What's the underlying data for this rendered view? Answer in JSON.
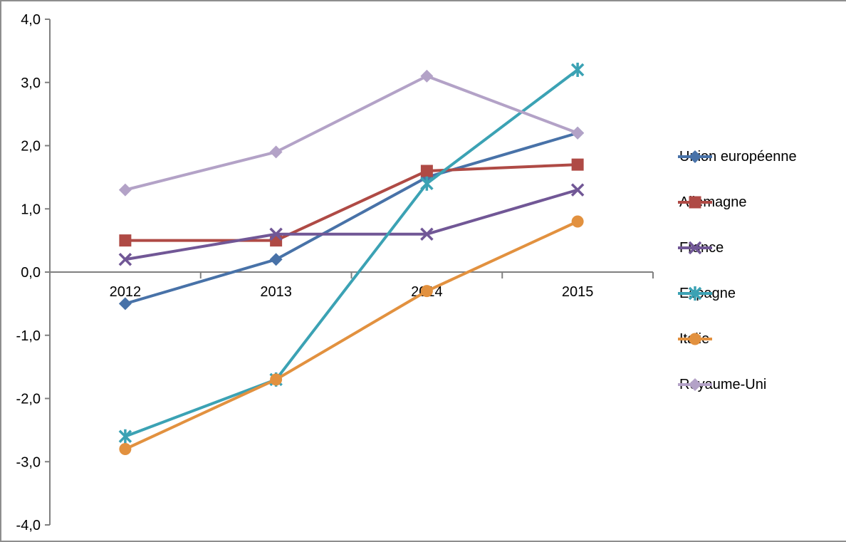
{
  "window": {
    "background": "#ffffff",
    "border_color": "#8e8e8e"
  },
  "chart_data": {
    "type": "line",
    "title": "",
    "xlabel": "",
    "ylabel": "",
    "categories": [
      "2012",
      "2013",
      "2014",
      "2015"
    ],
    "series": [
      {
        "name": "Union européenne",
        "color": "#4872a8",
        "marker": "diamond",
        "values": [
          -0.5,
          0.2,
          1.5,
          2.2
        ]
      },
      {
        "name": "Allemagne",
        "color": "#af4a45",
        "marker": "square",
        "values": [
          0.5,
          0.5,
          1.6,
          1.7
        ]
      },
      {
        "name": "France",
        "color": "#715796",
        "marker": "x",
        "values": [
          0.2,
          0.6,
          0.6,
          1.3
        ]
      },
      {
        "name": "Espagne",
        "color": "#3ba2b4",
        "marker": "asterisk",
        "values": [
          -2.6,
          -1.7,
          1.4,
          3.2
        ]
      },
      {
        "name": "Italie",
        "color": "#e2913f",
        "marker": "circle",
        "values": [
          -2.8,
          -1.7,
          -0.3,
          0.8
        ]
      },
      {
        "name": "Royaume-Uni",
        "color": "#b3a2c7",
        "marker": "diamond",
        "values": [
          1.3,
          1.9,
          3.1,
          2.2
        ]
      }
    ],
    "ylim": [
      -4.0,
      4.0
    ],
    "ytick_step": 1.0,
    "ytick_labels": [
      "4,0",
      "3,0",
      "2,0",
      "1,0",
      "0,0",
      "-1,0",
      "-2,0",
      "-3,0",
      "-4,0"
    ],
    "decimal_separator": ",",
    "grid": false,
    "legend_position": "right",
    "axis_color": "#808080",
    "text_color": "#000000"
  }
}
